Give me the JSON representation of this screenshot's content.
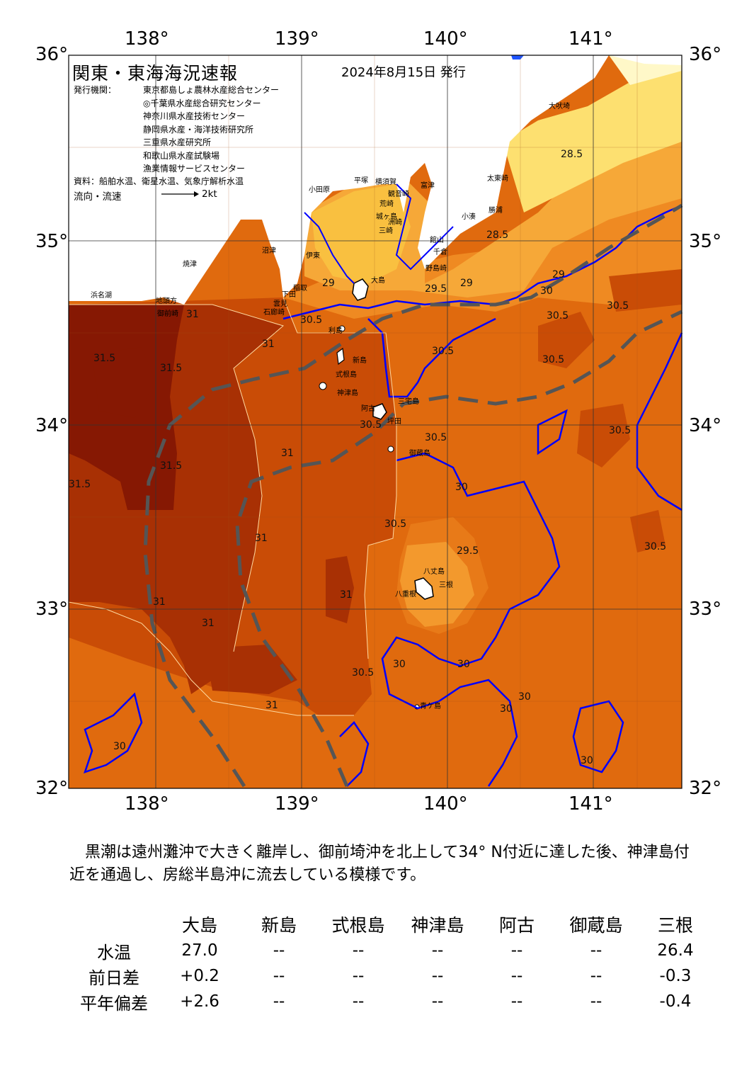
{
  "title": "関東・東海海況速報",
  "date": "2024年8月15日 発行",
  "issuer_label": "発行機関：",
  "issuers": [
    "東京都島しょ農林水産総合センター",
    "◎千葉県水産総合研究センター",
    "神奈川県水産技術センター",
    "静岡県水産・海洋技術研究所",
    "三重県水産研究所",
    "和歌山県水産試験場",
    "漁業情報サービスセンター"
  ],
  "source": "資料：船舶水温、衛星水温、気象庁解析水温",
  "flow_label": "流向・流速",
  "flow_unit": "2kt",
  "axes": {
    "lon_labels": [
      "138°",
      "139°",
      "140°",
      "141°"
    ],
    "lat_labels": [
      "36°",
      "35°",
      "34°",
      "33°",
      "32°"
    ]
  },
  "colors": {
    "t_lt27": "#fff8c8",
    "t_28": "#fde070",
    "t_28_5": "#f9c040",
    "t_29": "#f6a838",
    "t_29_5": "#ef8a22",
    "t_30": "#e06a0e",
    "t_30_5": "#c94c06",
    "t_31": "#a83004",
    "t_31_5": "#861803",
    "land": "#ffffff",
    "isotherm_30": "#0000ff",
    "kuroshio_path": "#555555"
  },
  "place_names": [
    "大吠埼",
    "太東崎",
    "勝浦",
    "小湊",
    "洲崎",
    "館山",
    "千倉",
    "野島崎",
    "富津",
    "観音崎",
    "荒崎",
    "三崎",
    "横須賀",
    "城ヶ島",
    "平塚",
    "小田原",
    "大島",
    "利島",
    "新島",
    "式根島",
    "神津島",
    "三宅島",
    "阿古",
    "坪田",
    "御蔵島",
    "八丈島",
    "三根",
    "八重根",
    "青ケ島",
    "焼津",
    "御前崎",
    "地頭方",
    "浜名湖",
    "沼津",
    "伊東",
    "稲取",
    "下田",
    "石廊崎",
    "雲見"
  ],
  "contour_labels": [
    "28.5",
    "28.5",
    "29",
    "29",
    "29",
    "29.5",
    "29.5",
    "30",
    "30",
    "30",
    "30",
    "30",
    "30",
    "30",
    "30",
    "30.5",
    "30.5",
    "30.5",
    "30.5",
    "30.5",
    "30.5",
    "30.5",
    "30.5",
    "30.5",
    "30.5",
    "30.5",
    "31",
    "31",
    "31",
    "31",
    "31",
    "31",
    "31",
    "31",
    "31.5",
    "31.5",
    "31.5",
    "31.5"
  ],
  "summary": "黒潮は遠州灘沖で大きく離岸し、御前埼沖を北上して34° N付近に達した後、神津島付近を通過し、房総半島沖に流去している模様です。",
  "table": {
    "islands": [
      "大島",
      "新島",
      "式根島",
      "神津島",
      "阿古",
      "御蔵島",
      "三根"
    ],
    "rows": [
      {
        "label": "水温",
        "values": [
          "27.0",
          "--",
          "--",
          "--",
          "--",
          "--",
          "26.4"
        ]
      },
      {
        "label": "前日差",
        "values": [
          "+0.2",
          "--",
          "--",
          "--",
          "--",
          "--",
          "-0.3"
        ]
      },
      {
        "label": "平年偏差",
        "values": [
          "+2.6",
          "--",
          "--",
          "--",
          "--",
          "--",
          "-0.4"
        ]
      }
    ]
  }
}
